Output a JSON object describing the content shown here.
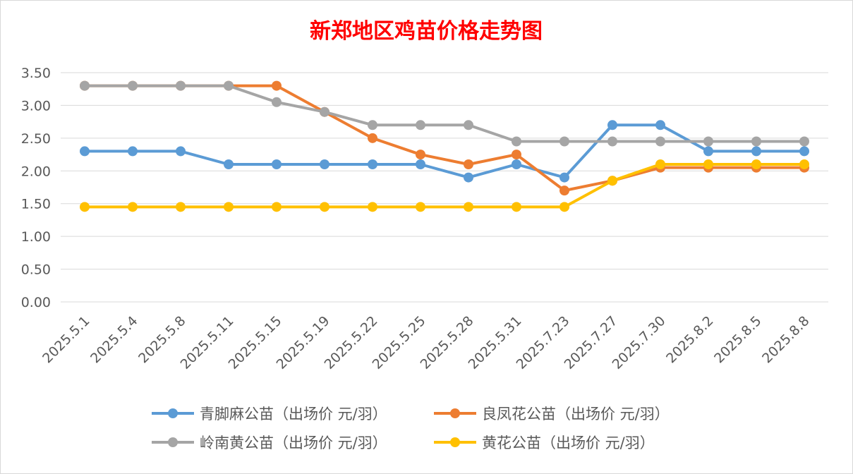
{
  "chart_data": {
    "type": "line",
    "title": "新郑地区鸡苗价格走势图",
    "xlabel": "",
    "ylabel": "",
    "ylim": [
      0,
      3.5
    ],
    "ytick_step": 0.5,
    "grid": true,
    "legend_position": "bottom",
    "categories": [
      "2025.5.1",
      "2025.5.4",
      "2025.5.8",
      "2025.5.11",
      "2025.5.15",
      "2025.5.19",
      "2025.5.22",
      "2025.5.25",
      "2025.5.28",
      "2025.5.31",
      "2025.7.23",
      "2025.7.27",
      "2025.7.30",
      "2025.8.2",
      "2025.8.5",
      "2025.8.8"
    ],
    "series": [
      {
        "name": "青脚麻公苗（出场价 元/羽）",
        "color": "#5b9bd5",
        "values": [
          2.3,
          2.3,
          2.3,
          2.1,
          2.1,
          2.1,
          2.1,
          2.1,
          1.9,
          2.1,
          1.9,
          2.7,
          2.7,
          2.3,
          2.3,
          2.3
        ]
      },
      {
        "name": "良凤花公苗（出场价 元/羽）",
        "color": "#ed7d31",
        "values": [
          3.3,
          3.3,
          3.3,
          3.3,
          3.3,
          2.9,
          2.5,
          2.25,
          2.1,
          2.25,
          1.7,
          1.85,
          2.05,
          2.05,
          2.05,
          2.05
        ]
      },
      {
        "name": "岭南黄公苗（出场价 元/羽）",
        "color": "#a5a5a5",
        "values": [
          3.3,
          3.3,
          3.3,
          3.3,
          3.05,
          2.9,
          2.7,
          2.7,
          2.7,
          2.45,
          2.45,
          2.45,
          2.45,
          2.45,
          2.45,
          2.45
        ]
      },
      {
        "name": "黄花公苗（出场价 元/羽）",
        "color": "#ffc000",
        "values": [
          1.45,
          1.45,
          1.45,
          1.45,
          1.45,
          1.45,
          1.45,
          1.45,
          1.45,
          1.45,
          1.45,
          1.85,
          2.1,
          2.1,
          2.1,
          2.1
        ]
      }
    ]
  }
}
